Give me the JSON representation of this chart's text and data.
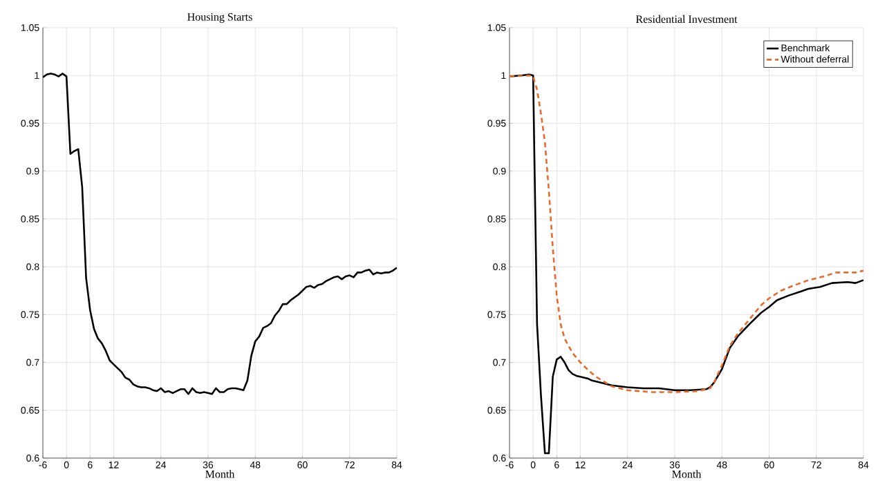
{
  "chart_data": [
    {
      "type": "line",
      "title": "Housing Starts",
      "xlabel": "Month",
      "xlim": [
        -6,
        84
      ],
      "ylim": [
        0.6,
        1.05
      ],
      "xticks": [
        -6,
        0,
        6,
        12,
        24,
        36,
        48,
        60,
        72,
        84
      ],
      "yticks": [
        0.6,
        0.65,
        0.7,
        0.75,
        0.8,
        0.85,
        0.9,
        0.95,
        1,
        1.05
      ],
      "grid": true,
      "legend": false,
      "series": [
        {
          "color": "#000000",
          "line_style": "solid",
          "x": [
            -6,
            -5,
            -4,
            -3,
            -2,
            -1,
            0,
            1,
            2,
            3,
            4,
            5,
            6,
            7,
            8,
            9,
            10,
            11,
            12,
            13,
            14,
            15,
            16,
            17,
            18,
            19,
            20,
            21,
            22,
            23,
            24,
            25,
            26,
            27,
            28,
            29,
            30,
            31,
            32,
            33,
            34,
            35,
            36,
            37,
            38,
            39,
            40,
            41,
            42,
            43,
            44,
            45,
            46,
            47,
            48,
            49,
            50,
            51,
            52,
            53,
            54,
            55,
            56,
            57,
            58,
            59,
            60,
            61,
            62,
            63,
            64,
            65,
            66,
            67,
            68,
            69,
            70,
            71,
            72,
            73,
            74,
            75,
            76,
            77,
            78,
            79,
            80,
            81,
            82,
            83,
            84
          ],
          "values": [
            0.998,
            1.001,
            1.002,
            1.001,
            0.999,
            1.002,
            0.999,
            0.918,
            0.921,
            0.923,
            0.883,
            0.788,
            0.755,
            0.735,
            0.725,
            0.72,
            0.712,
            0.702,
            0.698,
            0.694,
            0.69,
            0.684,
            0.682,
            0.677,
            0.675,
            0.674,
            0.674,
            0.673,
            0.671,
            0.67,
            0.673,
            0.669,
            0.67,
            0.668,
            0.67,
            0.672,
            0.672,
            0.667,
            0.673,
            0.669,
            0.668,
            0.669,
            0.668,
            0.667,
            0.673,
            0.669,
            0.669,
            0.672,
            0.673,
            0.673,
            0.672,
            0.671,
            0.681,
            0.707,
            0.722,
            0.727,
            0.736,
            0.738,
            0.741,
            0.749,
            0.754,
            0.761,
            0.761,
            0.765,
            0.768,
            0.771,
            0.775,
            0.779,
            0.78,
            0.778,
            0.781,
            0.782,
            0.785,
            0.787,
            0.789,
            0.79,
            0.787,
            0.79,
            0.791,
            0.789,
            0.794,
            0.794,
            0.796,
            0.797,
            0.792,
            0.794,
            0.793,
            0.794,
            0.794,
            0.796,
            0.799
          ]
        }
      ]
    },
    {
      "type": "line",
      "title": "Residential Investment",
      "xlabel": "Month",
      "xlim": [
        -6,
        84
      ],
      "ylim": [
        0.6,
        1.05
      ],
      "xticks": [
        -6,
        0,
        6,
        12,
        24,
        36,
        48,
        60,
        72,
        84
      ],
      "yticks": [
        0.6,
        0.65,
        0.7,
        0.75,
        0.8,
        0.85,
        0.9,
        0.95,
        1,
        1.05
      ],
      "grid": true,
      "legend": "top right",
      "series": [
        {
          "name": "Benchmark",
          "color": "#000000",
          "line_style": "solid",
          "x": [
            -6,
            -3,
            -1,
            0,
            1,
            2,
            3,
            4,
            5,
            6,
            7,
            8,
            9,
            10,
            11,
            12,
            14,
            15,
            17,
            20,
            24,
            28,
            32,
            36,
            40,
            44,
            45,
            46,
            48,
            50,
            52,
            55,
            58,
            60,
            62,
            65,
            68,
            70,
            73,
            76,
            80,
            82,
            84
          ],
          "values": [
            0.999,
            1.0,
            1.001,
            1.0,
            0.74,
            0.665,
            0.605,
            0.605,
            0.685,
            0.703,
            0.706,
            0.7,
            0.692,
            0.688,
            0.686,
            0.685,
            0.683,
            0.681,
            0.679,
            0.676,
            0.674,
            0.673,
            0.673,
            0.671,
            0.671,
            0.672,
            0.674,
            0.679,
            0.693,
            0.715,
            0.727,
            0.74,
            0.752,
            0.758,
            0.765,
            0.77,
            0.774,
            0.777,
            0.779,
            0.783,
            0.784,
            0.783,
            0.786
          ]
        },
        {
          "name": "Without deferral",
          "color": "#e8692b",
          "line_style": "dashed",
          "x": [
            -6,
            -1,
            0,
            1,
            2,
            3,
            4,
            5,
            6,
            7,
            8,
            10,
            12,
            14,
            16,
            20,
            24,
            30,
            36,
            42,
            45,
            46,
            48,
            50,
            52,
            55,
            58,
            60,
            63,
            66,
            70,
            74,
            77,
            82,
            84
          ],
          "values": [
            0.999,
            1.0,
            0.999,
            0.985,
            0.96,
            0.93,
            0.88,
            0.82,
            0.77,
            0.74,
            0.725,
            0.71,
            0.7,
            0.692,
            0.685,
            0.675,
            0.671,
            0.669,
            0.669,
            0.67,
            0.673,
            0.679,
            0.697,
            0.717,
            0.73,
            0.745,
            0.76,
            0.767,
            0.775,
            0.78,
            0.786,
            0.79,
            0.794,
            0.794,
            0.796
          ]
        }
      ]
    }
  ]
}
